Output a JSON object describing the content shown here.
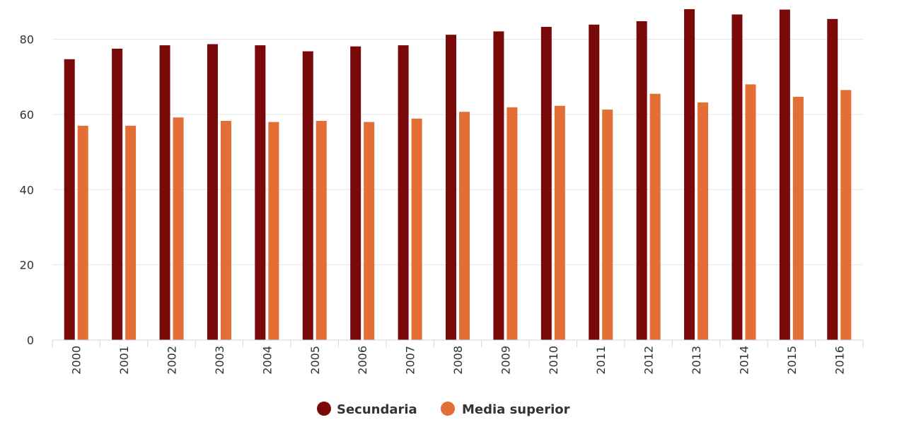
{
  "chart_data": {
    "type": "bar",
    "categories": [
      "2000",
      "2001",
      "2002",
      "2003",
      "2004",
      "2005",
      "2006",
      "2007",
      "2008",
      "2009",
      "2010",
      "2011",
      "2012",
      "2013",
      "2014",
      "2015",
      "2016"
    ],
    "series": [
      {
        "name": "Secundaria",
        "color": "#7a0a0a",
        "values": [
          74.7,
          77.5,
          78.4,
          78.7,
          78.4,
          76.8,
          78.1,
          78.4,
          81.2,
          82.1,
          83.3,
          83.9,
          84.8,
          88.0,
          86.6,
          87.9,
          85.4
        ]
      },
      {
        "name": "Media superior",
        "color": "#e36f36",
        "values": [
          57.0,
          57.0,
          59.2,
          58.3,
          58.0,
          58.3,
          58.0,
          58.9,
          60.7,
          61.9,
          62.3,
          61.3,
          65.5,
          63.2,
          68.0,
          64.7,
          66.5
        ]
      }
    ],
    "yticks": [
      "0",
      "20",
      "40",
      "60",
      "80"
    ],
    "ylim": [
      0,
      88
    ],
    "grid": true,
    "legend_position": "bottom-center"
  }
}
